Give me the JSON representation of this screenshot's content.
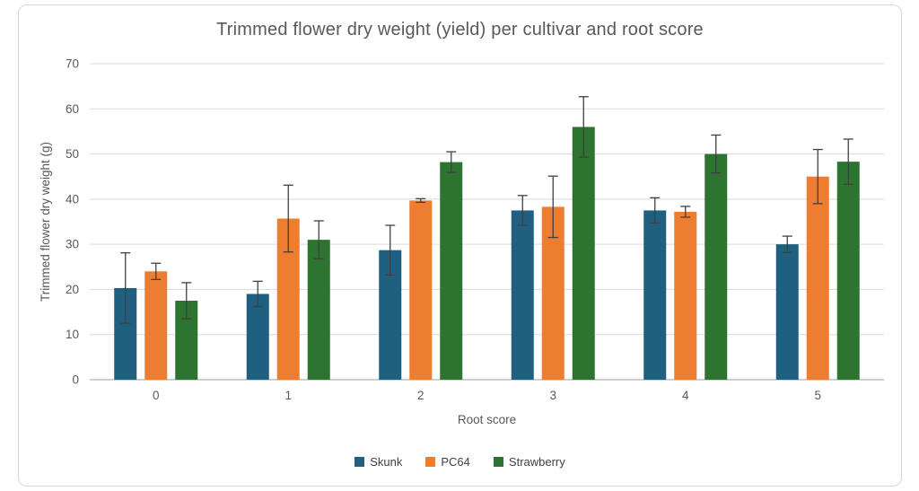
{
  "chart_data": {
    "type": "bar",
    "title": "Trimmed flower dry weight (yield) per cultivar and root score",
    "xlabel": "Root score",
    "ylabel": "Trimmed flower dry weight (g)",
    "categories": [
      "0",
      "1",
      "2",
      "3",
      "4",
      "5"
    ],
    "ylim": [
      0,
      70
    ],
    "yticks": [
      0,
      10,
      20,
      30,
      40,
      50,
      60,
      70
    ],
    "grid": "horizontal",
    "legend_position": "bottom",
    "error_bars": true,
    "series": [
      {
        "name": "Skunk",
        "color": "#1F5F7F",
        "values": [
          20.3,
          19.0,
          28.7,
          37.5,
          37.5,
          30.0
        ],
        "errors": [
          7.8,
          2.8,
          5.5,
          3.3,
          2.8,
          1.8
        ]
      },
      {
        "name": "PC64",
        "color": "#ED7D31",
        "values": [
          24.0,
          35.7,
          39.7,
          38.3,
          37.2,
          45.0
        ],
        "errors": [
          1.8,
          7.4,
          0.4,
          6.8,
          1.2,
          6.0
        ]
      },
      {
        "name": "Strawberry",
        "color": "#2E7431",
        "values": [
          17.5,
          31.0,
          48.2,
          56.0,
          50.0,
          48.3
        ],
        "errors": [
          4.0,
          4.2,
          2.3,
          6.7,
          4.2,
          5.0
        ]
      }
    ]
  },
  "style": {
    "text_color": "#595959",
    "grid_color": "#D9D9D9",
    "axis_color": "#BFBFBF",
    "error_color": "#404040",
    "frame_border": "#D6D6D6",
    "background": "#FFFFFF"
  }
}
